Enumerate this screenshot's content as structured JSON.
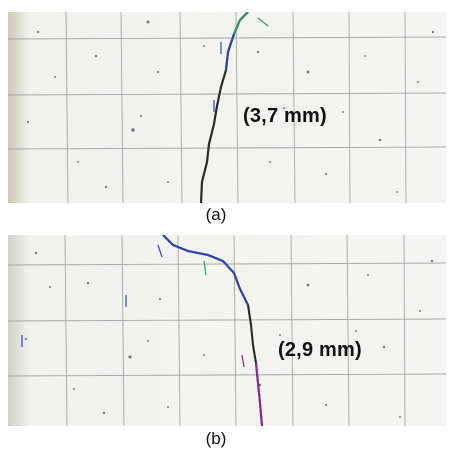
{
  "figure": {
    "panels": [
      {
        "caption": "(a)",
        "crack_width_label": "(3,7 mm)"
      },
      {
        "caption": "(b)",
        "crack_width_label": "(2,9 mm)"
      }
    ]
  },
  "colors": {
    "concrete_surface": "#f1f1ef",
    "grid_lines": "#9a9a9a",
    "crack": "#2a2a2a",
    "blue_marker": "#2e45b5",
    "green_marker": "#2f9a6a",
    "purple_marker": "#8a2d8e"
  }
}
